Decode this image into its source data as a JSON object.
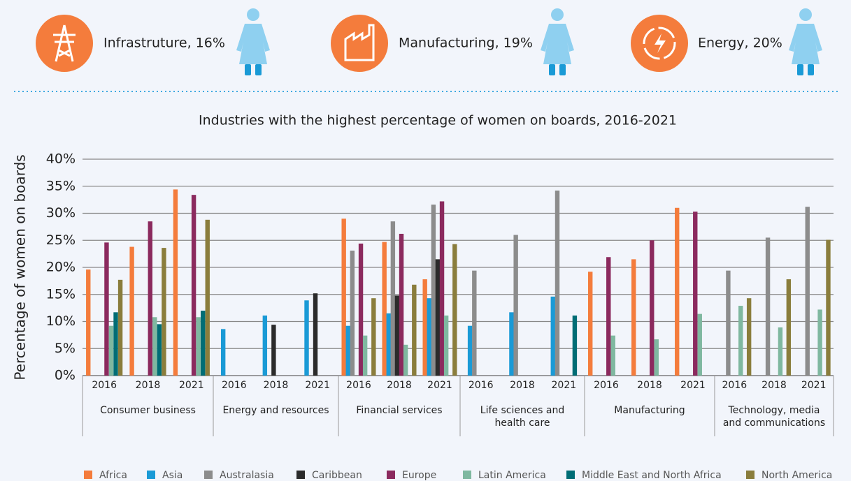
{
  "header": {
    "items": [
      {
        "label": "Infrastruture, 16%"
      },
      {
        "label": "Manufacturing, 19%"
      },
      {
        "label": "Energy, 20%"
      }
    ]
  },
  "chart_data": {
    "type": "grouped-bar",
    "title": "Industries with the highest percentage of women on boards, 2016-2021",
    "y_label": "Percentage of women on boards",
    "categories": [
      "Consumer business",
      "Energy and resources",
      "Financial services",
      "Life sciences and health care",
      "Manufacturing",
      "Technology, media and communications"
    ],
    "years": [
      "2016",
      "2018",
      "2021"
    ],
    "ylim": [
      0,
      40
    ],
    "yticks": [
      {
        "value": 0,
        "label": "0%"
      },
      {
        "value": 5,
        "label": "5%"
      },
      {
        "value": 10,
        "label": "10%"
      },
      {
        "value": 15,
        "label": "15%"
      },
      {
        "value": 20,
        "label": "20%"
      },
      {
        "value": 25,
        "label": "25%"
      },
      {
        "value": 30,
        "label": "30%"
      },
      {
        "value": 35,
        "label": "35%"
      },
      {
        "value": 40,
        "label": "40%"
      }
    ],
    "grid": true,
    "series": [
      {
        "name": "Africa",
        "color": "#f47c3c",
        "values": [
          [
            19.6,
            23.8,
            34.4
          ],
          [
            null,
            null,
            null
          ],
          [
            29.0,
            24.7,
            17.8
          ],
          [
            null,
            null,
            null
          ],
          [
            19.2,
            21.5,
            31.0
          ],
          [
            null,
            null,
            null
          ]
        ]
      },
      {
        "name": "Asia",
        "color": "#1a9ad6",
        "values": [
          [
            null,
            null,
            null
          ],
          [
            8.6,
            11.1,
            13.9
          ],
          [
            9.2,
            11.5,
            14.3
          ],
          [
            9.2,
            11.7,
            14.6
          ],
          [
            null,
            null,
            null
          ],
          [
            null,
            null,
            null
          ]
        ]
      },
      {
        "name": "Australasia",
        "color": "#8c8c8c",
        "values": [
          [
            null,
            null,
            null
          ],
          [
            null,
            null,
            null
          ],
          [
            23.1,
            28.5,
            31.6
          ],
          [
            19.4,
            26.0,
            34.2
          ],
          [
            null,
            null,
            null
          ],
          [
            19.4,
            25.5,
            31.2
          ]
        ]
      },
      {
        "name": "Caribbean",
        "color": "#2b2b2b",
        "values": [
          [
            null,
            null,
            null
          ],
          [
            null,
            9.4,
            15.2
          ],
          [
            null,
            14.8,
            21.5
          ],
          [
            null,
            null,
            null
          ],
          [
            null,
            null,
            null
          ],
          [
            null,
            null,
            null
          ]
        ]
      },
      {
        "name": "Europe",
        "color": "#8b2a5e",
        "values": [
          [
            24.6,
            28.5,
            33.4
          ],
          [
            null,
            null,
            null
          ],
          [
            24.4,
            26.2,
            32.2
          ],
          [
            null,
            null,
            null
          ],
          [
            21.9,
            25.0,
            30.3
          ],
          [
            null,
            null,
            null
          ]
        ]
      },
      {
        "name": "Latin America",
        "color": "#7fb8a0",
        "values": [
          [
            9.2,
            10.8,
            10.8
          ],
          [
            null,
            null,
            null
          ],
          [
            7.4,
            5.7,
            11.1
          ],
          [
            null,
            null,
            null
          ],
          [
            7.4,
            6.7,
            11.4
          ],
          [
            12.9,
            8.9,
            12.2
          ]
        ]
      },
      {
        "name": "Middle East and North Africa",
        "color": "#006d75",
        "values": [
          [
            11.7,
            9.5,
            12.0
          ],
          [
            null,
            null,
            null
          ],
          [
            null,
            null,
            null
          ],
          [
            null,
            null,
            11.1
          ],
          [
            null,
            null,
            null
          ],
          [
            null,
            null,
            null
          ]
        ]
      },
      {
        "name": "North America",
        "color": "#8a7d3c",
        "values": [
          [
            17.7,
            23.6,
            28.8
          ],
          [
            null,
            null,
            null
          ],
          [
            14.3,
            16.8,
            24.3
          ],
          [
            null,
            null,
            null
          ],
          [
            null,
            null,
            null
          ],
          [
            14.3,
            17.8,
            25.1
          ]
        ]
      }
    ]
  }
}
